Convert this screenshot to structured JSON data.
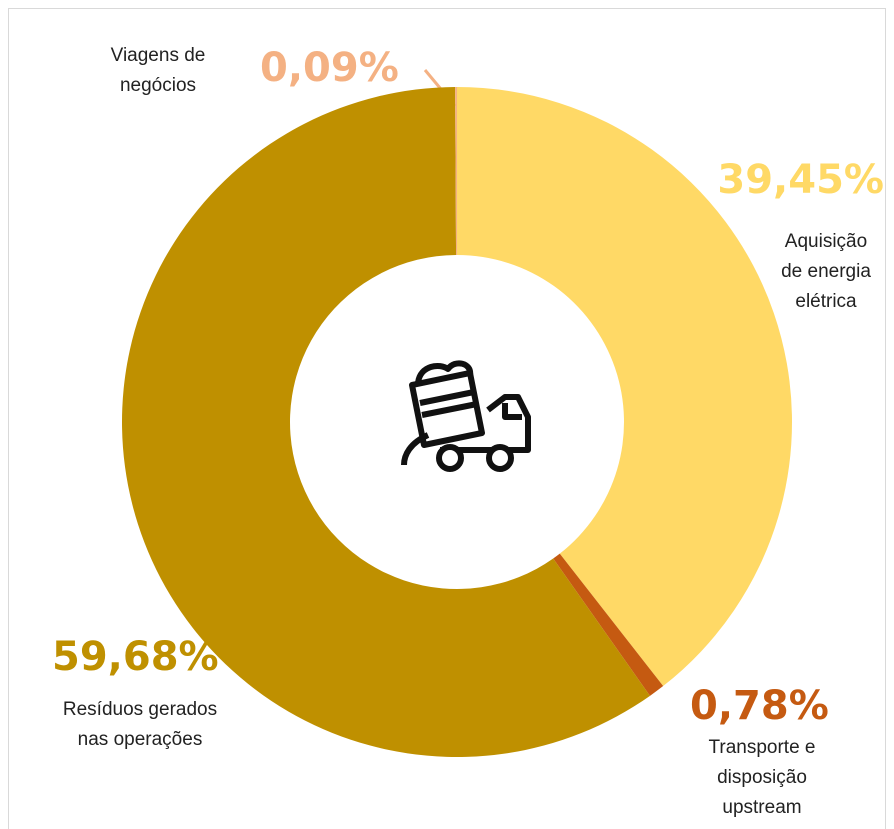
{
  "chart_data": {
    "type": "donut",
    "categories": [
      "Aquisição de energia elétrica",
      "Transporte e disposição upstream",
      "Resíduos gerados nas operações",
      "Viagens de negócios"
    ],
    "values": [
      39.45,
      0.78,
      59.68,
      0.09
    ],
    "value_labels": [
      "39,45%",
      "0,78%",
      "59,68%",
      "0,09%"
    ],
    "colors": [
      "#FFD966",
      "#C55A11",
      "#BF9000",
      "#F4B183"
    ]
  }
}
